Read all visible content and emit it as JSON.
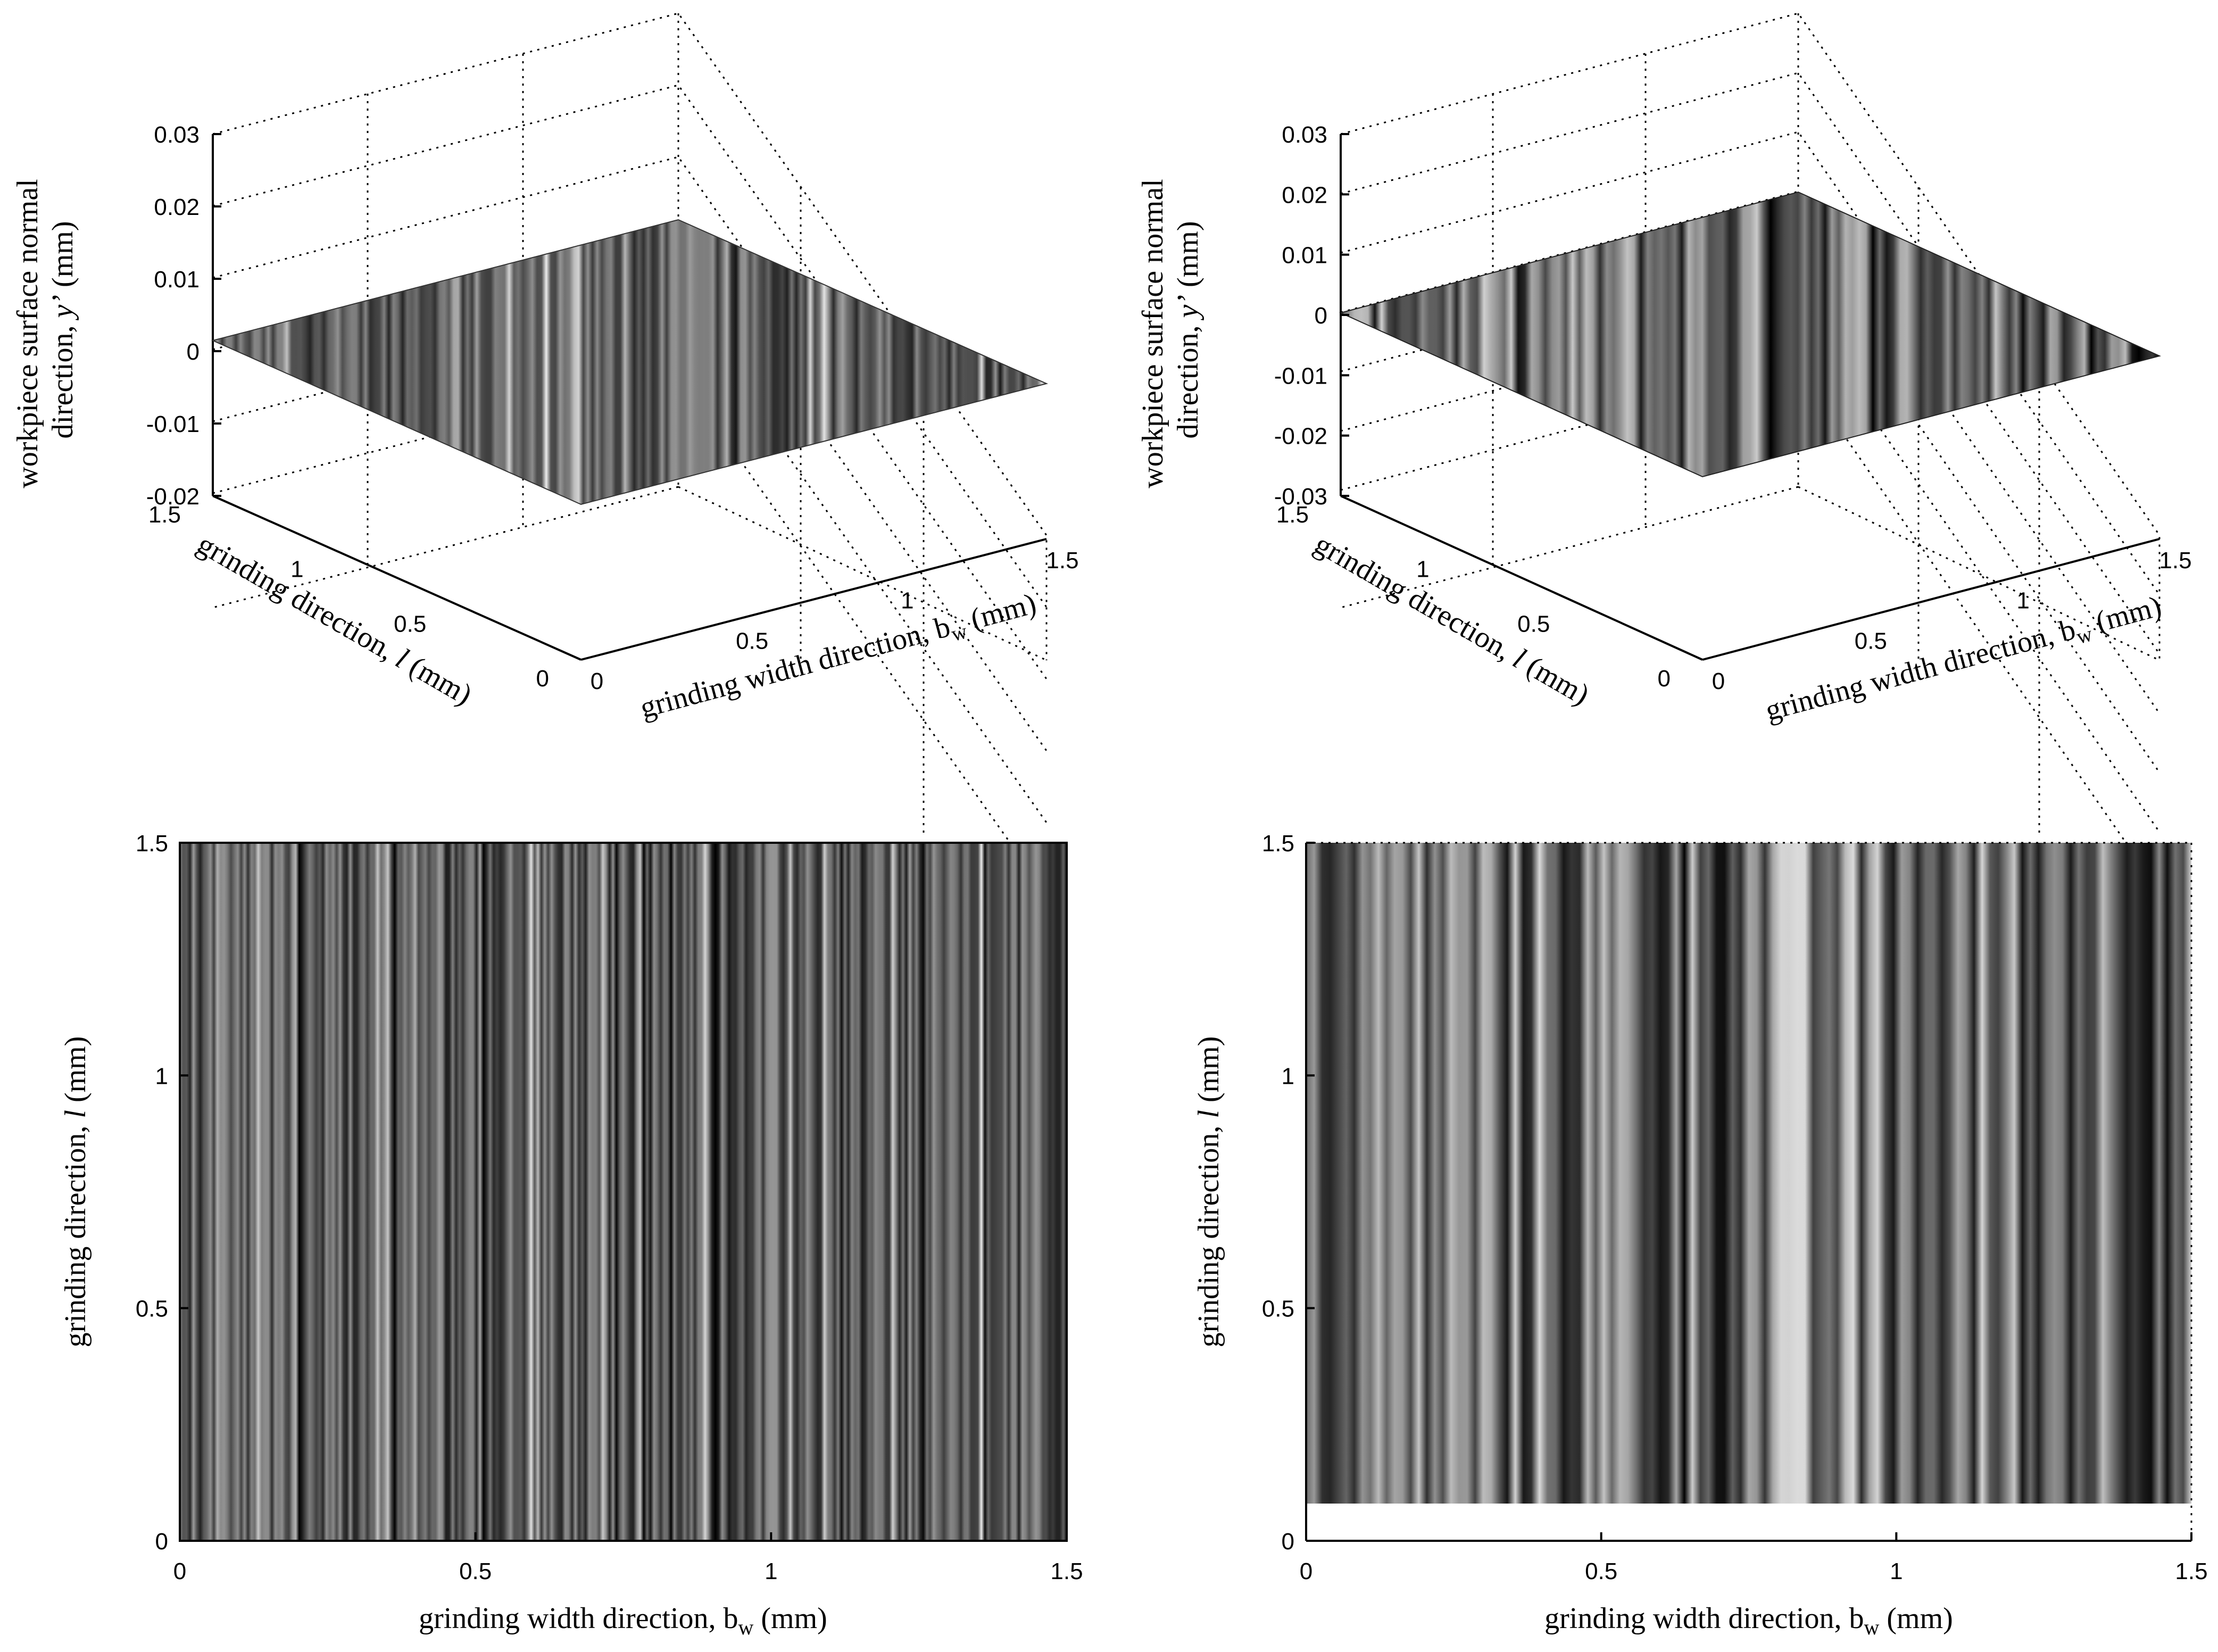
{
  "chart_data": [
    {
      "id": "p1",
      "type": "surface",
      "xlabel": "grinding width direction, b",
      "xlabel_sub": "w",
      "xlabel_unit": " (mm)",
      "ylabel": "grinding direction, ",
      "ylabel_var": "l",
      "ylabel_unit": " (mm)",
      "zlabel_line1": "workpiece surface normal",
      "zlabel_line2": "direction, ",
      "zlabel_var": "y’",
      "zlabel_unit": " (mm)",
      "xticks": [
        "0",
        "0.5",
        "1",
        "1.5"
      ],
      "yticks": [
        "0",
        "0.5",
        "1",
        "1.5"
      ],
      "zticks": [
        "0.03",
        "0.02",
        "0.01",
        "0",
        "-0.01",
        "-0.02"
      ],
      "xlim": [
        0,
        1.5
      ],
      "ylim": [
        0,
        1.5
      ],
      "zlim": [
        -0.02,
        0.03
      ],
      "surface_level": 0,
      "color": "grayscale striations along grinding direction"
    },
    {
      "id": "p2",
      "type": "surface",
      "xlabel": "grinding width direction, b",
      "xlabel_sub": "w",
      "xlabel_unit": " (mm)",
      "ylabel": "grinding direction, ",
      "ylabel_var": "l",
      "ylabel_unit": " (mm)",
      "zlabel_line1": "workpiece surface normal",
      "zlabel_line2": "direction, ",
      "zlabel_var": "y’",
      "zlabel_unit": " (mm)",
      "xticks": [
        "0",
        "0.5",
        "1",
        "1.5"
      ],
      "yticks": [
        "0",
        "0.5",
        "1",
        "1.5"
      ],
      "zticks": [
        "0.03",
        "0.02",
        "0.01",
        "0",
        "-0.01",
        "-0.02",
        "-0.03"
      ],
      "xlim": [
        0,
        1.5
      ],
      "ylim": [
        0,
        1.5
      ],
      "zlim": [
        -0.03,
        0.03
      ],
      "surface_level": 0,
      "color": "grayscale striations along grinding direction"
    },
    {
      "id": "p3",
      "type": "heatmap",
      "xlabel": "grinding width direction, b",
      "xlabel_sub": "w",
      "xlabel_unit": " (mm)",
      "ylabel": "grinding direction, ",
      "ylabel_var": "l",
      "ylabel_unit": " (mm)",
      "xticks": [
        "0",
        "0.5",
        "1",
        "1.5"
      ],
      "yticks": [
        "0",
        "0.5",
        "1",
        "1.5"
      ],
      "xlim": [
        0,
        1.5
      ],
      "ylim": [
        0,
        1.5
      ],
      "color": "grayscale, measured surface"
    },
    {
      "id": "p4",
      "type": "heatmap",
      "xlabel": "grinding width direction, b",
      "xlabel_sub": "w",
      "xlabel_unit": " (mm)",
      "ylabel": "grinding direction, ",
      "ylabel_var": "l",
      "ylabel_unit": " (mm)",
      "xticks": [
        "0",
        "0.5",
        "1",
        "1.5"
      ],
      "yticks": [
        "0",
        "0.5",
        "1",
        "1.5"
      ],
      "xlim": [
        0,
        1.5
      ],
      "ylim": [
        0,
        1.5
      ],
      "data_ymin": 0.08,
      "color": "grayscale, simulated surface"
    }
  ]
}
